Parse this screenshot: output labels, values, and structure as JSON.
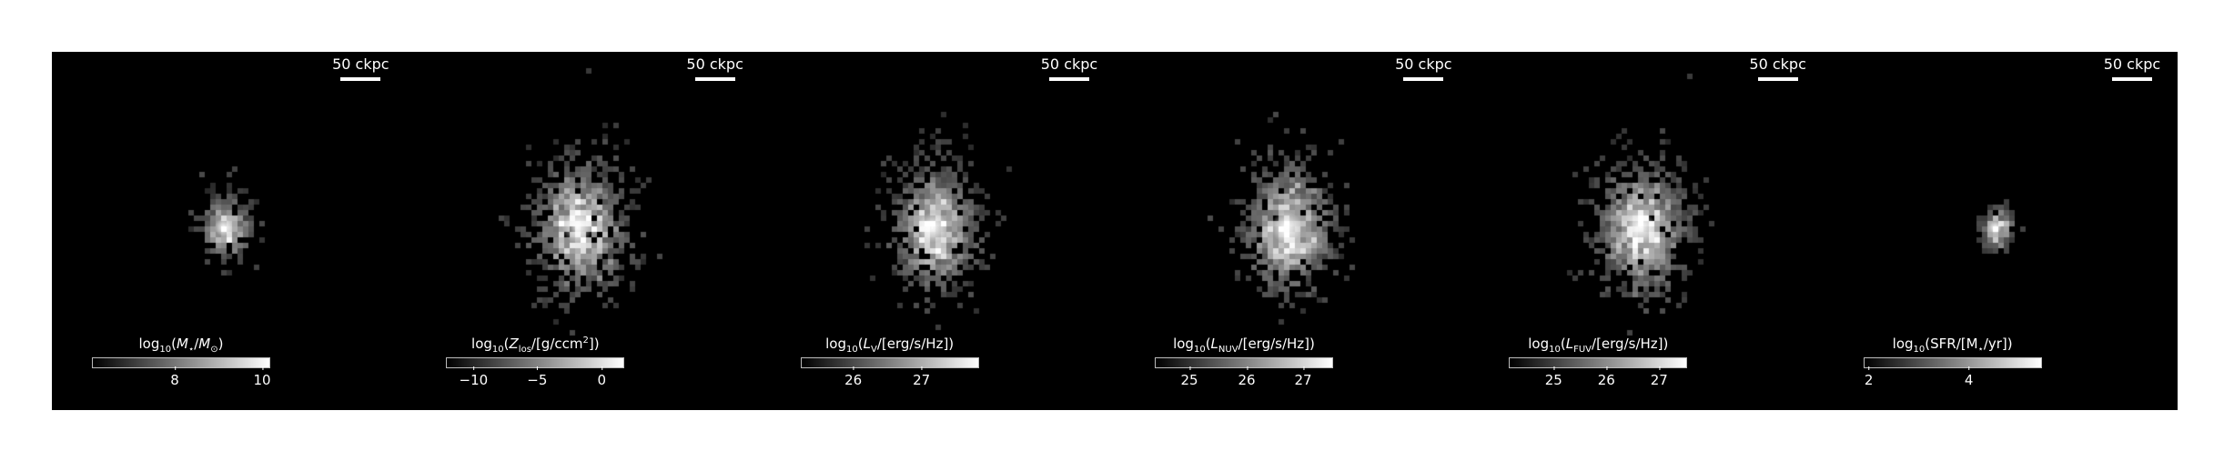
{
  "scale_bar": "50 ckpc",
  "colors": {
    "background": "#000000",
    "frame": "#ffffff",
    "text": "#ffffff"
  },
  "panels": [
    {
      "id": "mass",
      "scale_label": "50 ckpc",
      "cbar_title": [
        "log",
        "10",
        "(",
        "M",
        "⋆",
        "/",
        "M",
        "⊙",
        ")"
      ],
      "cbar_title_text": "log10(M⋆/M⊙)",
      "ticks": [
        "8",
        "10"
      ]
    },
    {
      "id": "metallicity",
      "scale_label": "50 ckpc",
      "cbar_title_text": "log10(Zlos/[g/ccm2])",
      "ticks": [
        "−10",
        "−5",
        "0"
      ]
    },
    {
      "id": "lum-v",
      "scale_label": "50 ckpc",
      "cbar_title_text": "log10(LV/[erg/s/Hz])",
      "ticks": [
        "26",
        "27"
      ]
    },
    {
      "id": "lum-nuv",
      "scale_label": "50 ckpc",
      "cbar_title_text": "log10(LNUV/[erg/s/Hz])",
      "ticks": [
        "25",
        "26",
        "27"
      ]
    },
    {
      "id": "lum-fuv",
      "scale_label": "50 ckpc",
      "cbar_title_text": "log10(LFUV/[erg/s/Hz])",
      "ticks": [
        "25",
        "26",
        "27"
      ]
    },
    {
      "id": "sfr",
      "scale_label": "50 ckpc",
      "cbar_title_text": "log10(SFR/[M⋆/yr])",
      "ticks": [
        "2",
        "4"
      ]
    }
  ]
}
